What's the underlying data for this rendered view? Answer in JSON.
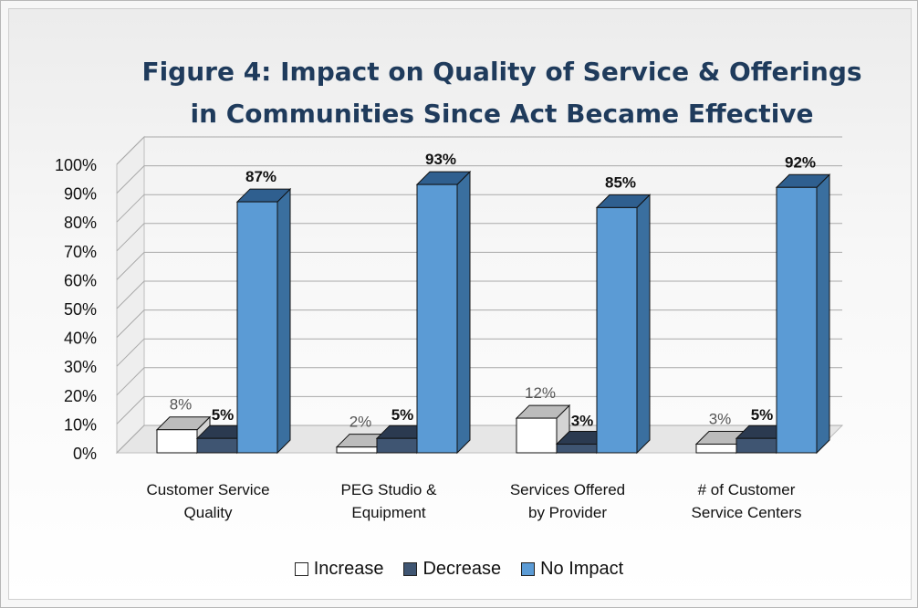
{
  "colors": {
    "increase": "#ffffff",
    "decrease": "#3f5572",
    "no_impact": "#5b9bd5"
  },
  "chart_data": {
    "type": "bar",
    "title_lines": [
      "Figure 4: Impact on Quality of Service & Offerings",
      "in Communities Since Act Became Effective"
    ],
    "categories": [
      [
        "Customer Service",
        "Quality"
      ],
      [
        "PEG Studio &",
        "Equipment"
      ],
      [
        "Services Offered",
        "by Provider"
      ],
      [
        "# of Customer",
        "Service Centers"
      ]
    ],
    "series": [
      {
        "name": "Increase",
        "values": [
          8,
          2,
          12,
          3
        ]
      },
      {
        "name": "Decrease",
        "values": [
          5,
          5,
          3,
          5
        ]
      },
      {
        "name": "No Impact",
        "values": [
          87,
          93,
          85,
          92
        ]
      }
    ],
    "data_labels": [
      [
        "8%",
        "2%",
        "12%",
        "3%"
      ],
      [
        "5%",
        "5%",
        "3%",
        "5%"
      ],
      [
        "87%",
        "93%",
        "85%",
        "92%"
      ]
    ],
    "y_ticks": [
      "0%",
      "10%",
      "20%",
      "30%",
      "40%",
      "50%",
      "60%",
      "70%",
      "80%",
      "90%",
      "100%"
    ],
    "ylim": [
      0,
      100
    ],
    "grid": true,
    "style": "3d-clustered-column",
    "legend_position": "bottom"
  }
}
